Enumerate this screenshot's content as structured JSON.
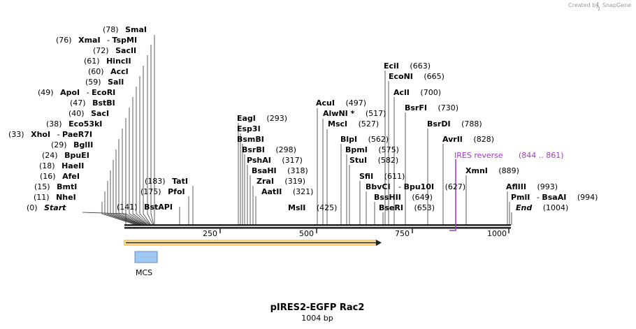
{
  "credit": {
    "text": "Created by",
    "brand": "SnapGene"
  },
  "title": "pIRES2-EGFP Rac2",
  "subtitle": "1004 bp",
  "axis_ticks": [
    "250",
    "500",
    "750",
    "1000"
  ],
  "colors": {
    "ires": "#a336c9",
    "arrow": "#f2a81d",
    "mcs_fill": "#9fc8f0",
    "mcs_stroke": "#4a7ab5"
  },
  "left_sites": [
    {
      "num": "(78)",
      "name": "SmaI"
    },
    {
      "num": "(76)",
      "name": "XmaI",
      "sep": "-",
      "name2": "TspMI"
    },
    {
      "num": "(72)",
      "name": "SacII"
    },
    {
      "num": "(61)",
      "name": "HincII"
    },
    {
      "num": "(60)",
      "name": "AccI"
    },
    {
      "num": "(59)",
      "name": "SalI"
    },
    {
      "num": "(49)",
      "name": "ApoI",
      "sep": "-",
      "name2": "EcoRI"
    },
    {
      "num": "(47)",
      "name": "BstBI"
    },
    {
      "num": "(40)",
      "name": "SacI"
    },
    {
      "num": "(38)",
      "name": "Eco53kI"
    },
    {
      "num": "(33)",
      "name": "XhoI",
      "sep": "-",
      "name2": "PaeR7I"
    },
    {
      "num": "(29)",
      "name": "BglII"
    },
    {
      "num": "(24)",
      "name": "BpuEI"
    },
    {
      "num": "(18)",
      "name": "HaeII"
    },
    {
      "num": "(16)",
      "name": "AfeI"
    },
    {
      "num": "(15)",
      "name": "BmtI"
    },
    {
      "num": "(11)",
      "name": "NheI"
    },
    {
      "num": "(0)",
      "name": "Start"
    }
  ],
  "center_left_sites": [
    {
      "num": "(183)",
      "name": "TatI"
    },
    {
      "num": "(175)",
      "name": "PfoI"
    },
    {
      "num": "(141)",
      "name": "BstAPI"
    }
  ],
  "right_sites": [
    {
      "name": "EagI",
      "num": "(293)"
    },
    {
      "name": "Esp3I",
      "num": ""
    },
    {
      "name": "BsmBI",
      "num": ""
    },
    {
      "name": "BsrBI",
      "num": "(298)"
    },
    {
      "name": "PshAI",
      "num": "(317)"
    },
    {
      "name": "BsaHI",
      "num": "(318)"
    },
    {
      "name": "ZraI",
      "num": "(319)"
    },
    {
      "name": "AatII",
      "num": "(321)"
    },
    {
      "name": "MslI",
      "num": "(425)"
    },
    {
      "name": "AcuI",
      "num": "(497)"
    },
    {
      "name": "AlwNI *",
      "num": "(517)"
    },
    {
      "name": "MscI",
      "num": "(527)"
    },
    {
      "name": "BlpI",
      "num": "(562)"
    },
    {
      "name": "BpmI",
      "num": "(575)"
    },
    {
      "name": "StuI",
      "num": "(582)"
    },
    {
      "name": "SfiI",
      "num": "(611)"
    },
    {
      "name": "BbvCI",
      "sep": "-",
      "name2": "Bpu10I",
      "num": "(627)"
    },
    {
      "name": "BssHII",
      "num": "(649)"
    },
    {
      "name": "BseRI",
      "num": "(653)"
    },
    {
      "name": "EciI",
      "num": "(663)"
    },
    {
      "name": "EcoNI",
      "num": "(665)"
    },
    {
      "name": "AclI",
      "num": "(700)"
    },
    {
      "name": "BsrFI",
      "num": "(730)"
    },
    {
      "name": "BsrDI",
      "num": "(788)"
    },
    {
      "name": "AvrII",
      "num": "(828)"
    },
    {
      "name": "XmnI",
      "num": "(889)"
    },
    {
      "name": "AflIII",
      "num": "(993)"
    },
    {
      "name": "PmlI",
      "sep": "-",
      "name2": "BsaAI",
      "num": "(994)"
    },
    {
      "name": "End",
      "num": "(1004)"
    }
  ],
  "features": {
    "ires_label": "IRES reverse",
    "ires_range": "(844 .. 861)",
    "mcs_label": "MCS"
  }
}
